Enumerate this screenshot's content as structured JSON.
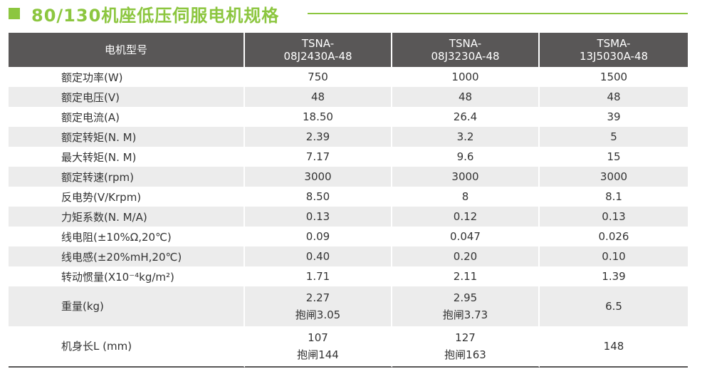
{
  "title": "80/130机座低压伺服电机规格",
  "colors": {
    "accent": "#8cc63f",
    "header_bg": "#595757",
    "row_alt": "#ececec"
  },
  "table": {
    "header_label": "电机型号",
    "models": [
      {
        "line1": "TSNA-",
        "line2": "08J2430A-48"
      },
      {
        "line1": "TSNA-",
        "line2": "08J3230A-48"
      },
      {
        "line1": "TSMA-",
        "line2": "13J5030A-48"
      }
    ],
    "rows": [
      {
        "label": "额定功率(W)",
        "values": [
          "750",
          "1000",
          "1500"
        ]
      },
      {
        "label": "额定电压(V)",
        "values": [
          "48",
          "48",
          "48"
        ]
      },
      {
        "label": "额定电流(A)",
        "values": [
          "18.50",
          "26.4",
          "39"
        ]
      },
      {
        "label": "额定转矩(N. M)",
        "values": [
          "2.39",
          "3.2",
          "5"
        ]
      },
      {
        "label": "最大转矩(N. M)",
        "values": [
          "7.17",
          "9.6",
          "15"
        ]
      },
      {
        "label": "额定转速(rpm)",
        "values": [
          "3000",
          "3000",
          "3000"
        ]
      },
      {
        "label": "反电势(V/Krpm)",
        "values": [
          "8.50",
          "8",
          "8.1"
        ]
      },
      {
        "label": "力矩系数(N. M/A)",
        "values": [
          "0.13",
          "0.12",
          "0.13"
        ]
      },
      {
        "label": "线电阻(±10%Ω,20℃)",
        "values": [
          "0.09",
          "0.047",
          "0.026"
        ]
      },
      {
        "label": "线电感(±20%mH,20℃)",
        "values": [
          "0.40",
          "0.20",
          "0.10"
        ]
      },
      {
        "label": "转动惯量(X10⁻⁴kg/m²)",
        "values": [
          "1.71",
          "2.11",
          "1.39"
        ]
      }
    ],
    "weight": {
      "label": "重量(kg)",
      "values": [
        {
          "line1": "2.27",
          "line2": "抱闸3.05"
        },
        {
          "line1": "2.95",
          "line2": "抱闸3.73"
        },
        {
          "line1": "6.5",
          "line2": ""
        }
      ]
    },
    "length": {
      "label": "机身长L (mm)",
      "values": [
        {
          "line1": "107",
          "line2": "抱闸144"
        },
        {
          "line1": "127",
          "line2": "抱闸163"
        },
        {
          "line1": "148",
          "line2": ""
        }
      ]
    }
  }
}
